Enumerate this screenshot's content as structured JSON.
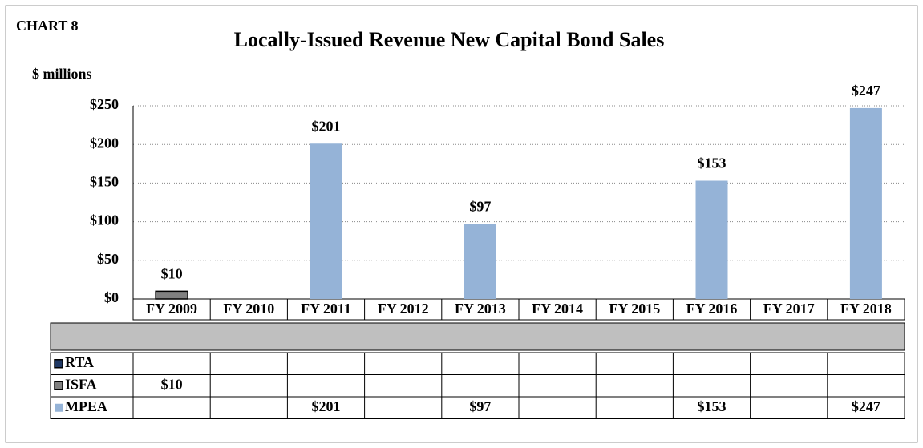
{
  "chart_data": {
    "type": "bar",
    "chart_label": "CHART 8",
    "title": "Locally-Issued Revenue New Capital Bond Sales",
    "y_label": "$ millions",
    "categories": [
      "FY 2009",
      "FY 2010",
      "FY 2011",
      "FY 2012",
      "FY 2013",
      "FY 2014",
      "FY 2015",
      "FY 2016",
      "FY 2017",
      "FY 2018"
    ],
    "series": [
      {
        "name": "RTA",
        "color": "#1f3864",
        "values": [
          null,
          null,
          null,
          null,
          null,
          null,
          null,
          null,
          null,
          null
        ]
      },
      {
        "name": "ISFA",
        "color": "#808080",
        "values": [
          10,
          null,
          null,
          null,
          null,
          null,
          null,
          null,
          null,
          null
        ],
        "value_labels": [
          "$10",
          null,
          null,
          null,
          null,
          null,
          null,
          null,
          null,
          null
        ]
      },
      {
        "name": "MPEA",
        "color": "#95b3d7",
        "values": [
          null,
          null,
          201,
          null,
          97,
          null,
          null,
          153,
          null,
          247
        ],
        "value_labels": [
          null,
          null,
          "$201",
          null,
          "$97",
          null,
          null,
          "$153",
          null,
          "$247"
        ]
      }
    ],
    "ylim": [
      0,
      250
    ],
    "yticks": [
      {
        "value": 0,
        "label": "$0"
      },
      {
        "value": 50,
        "label": "$50"
      },
      {
        "value": 100,
        "label": "$100"
      },
      {
        "value": 150,
        "label": "$150"
      },
      {
        "value": 200,
        "label": "$200"
      },
      {
        "value": 250,
        "label": "$250"
      }
    ],
    "grid": true
  }
}
